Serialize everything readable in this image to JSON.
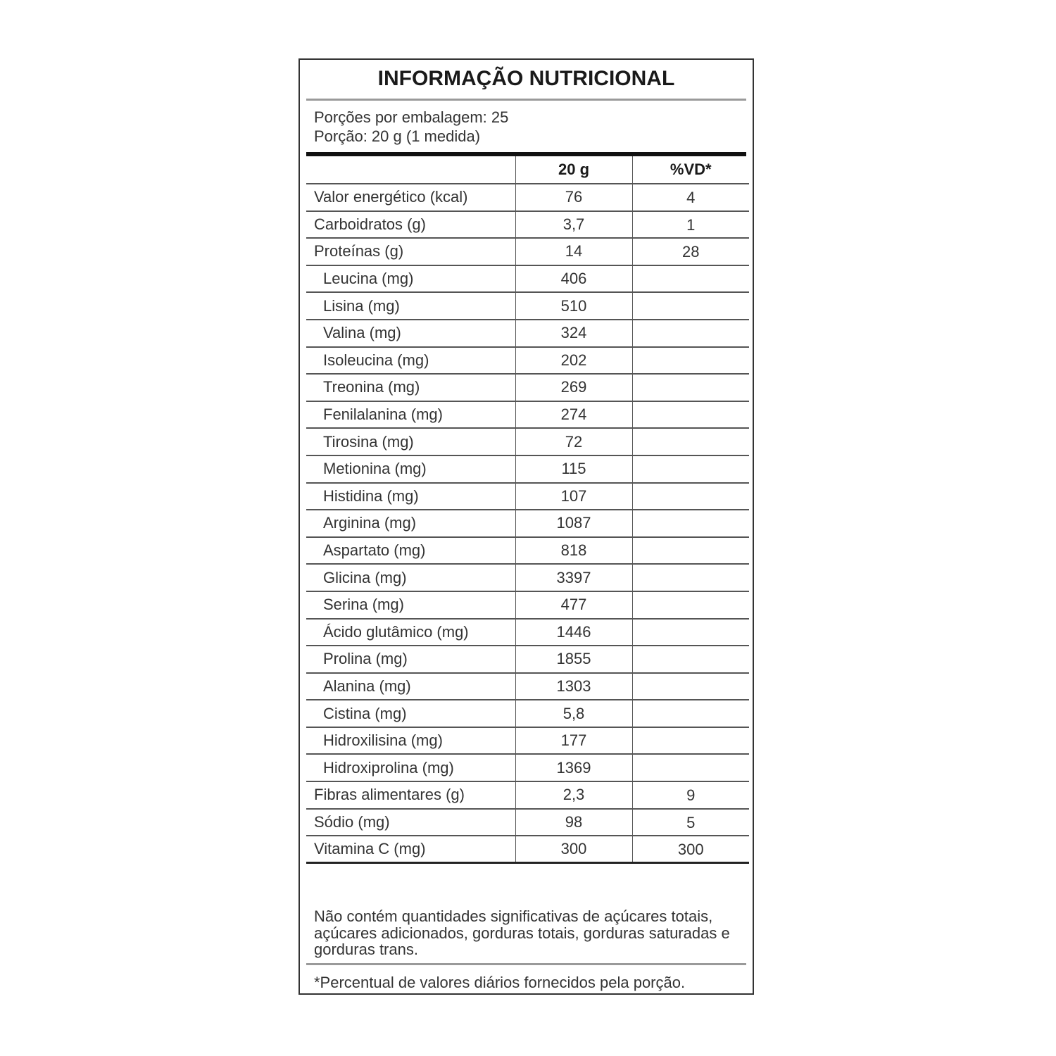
{
  "title": "INFORMAÇÃO NUTRICIONAL",
  "servings_per_package": "Porções por embalagem: 25",
  "serving_size": "Porção: 20 g (1 medida)",
  "columns": {
    "label": "",
    "amount": "20 g",
    "dv": "%VD*"
  },
  "rows": [
    {
      "label": "Valor energético (kcal)",
      "amount": "76",
      "dv": "4",
      "sub": false
    },
    {
      "label": "Carboidratos (g)",
      "amount": "3,7",
      "dv": "1",
      "sub": false
    },
    {
      "label": "Proteínas (g)",
      "amount": "14",
      "dv": "28",
      "sub": false
    },
    {
      "label": "Leucina (mg)",
      "amount": "406",
      "dv": "",
      "sub": true
    },
    {
      "label": "Lisina (mg)",
      "amount": "510",
      "dv": "",
      "sub": true
    },
    {
      "label": "Valina (mg)",
      "amount": "324",
      "dv": "",
      "sub": true
    },
    {
      "label": "Isoleucina (mg)",
      "amount": "202",
      "dv": "",
      "sub": true
    },
    {
      "label": "Treonina (mg)",
      "amount": "269",
      "dv": "",
      "sub": true
    },
    {
      "label": "Fenilalanina (mg)",
      "amount": "274",
      "dv": "",
      "sub": true
    },
    {
      "label": "Tirosina (mg)",
      "amount": "72",
      "dv": "",
      "sub": true
    },
    {
      "label": "Metionina (mg)",
      "amount": "115",
      "dv": "",
      "sub": true
    },
    {
      "label": "Histidina (mg)",
      "amount": "107",
      "dv": "",
      "sub": true
    },
    {
      "label": "Arginina (mg)",
      "amount": "1087",
      "dv": "",
      "sub": true
    },
    {
      "label": "Aspartato (mg)",
      "amount": "818",
      "dv": "",
      "sub": true
    },
    {
      "label": "Glicina (mg)",
      "amount": "3397",
      "dv": "",
      "sub": true
    },
    {
      "label": "Serina (mg)",
      "amount": "477",
      "dv": "",
      "sub": true
    },
    {
      "label": "Ácido glutâmico (mg)",
      "amount": "1446",
      "dv": "",
      "sub": true
    },
    {
      "label": "Prolina (mg)",
      "amount": "1855",
      "dv": "",
      "sub": true
    },
    {
      "label": "Alanina (mg)",
      "amount": "1303",
      "dv": "",
      "sub": true
    },
    {
      "label": "Cistina (mg)",
      "amount": "5,8",
      "dv": "",
      "sub": true
    },
    {
      "label": "Hidroxilisina (mg)",
      "amount": "177",
      "dv": "",
      "sub": true
    },
    {
      "label": "Hidroxiprolina (mg)",
      "amount": "1369",
      "dv": "",
      "sub": true
    },
    {
      "label": "Fibras alimentares (g)",
      "amount": "2,3",
      "dv": "9",
      "sub": false
    },
    {
      "label": "Sódio (mg)",
      "amount": "98",
      "dv": "5",
      "sub": false
    },
    {
      "label": "Vitamina C (mg)",
      "amount": "300",
      "dv": "300",
      "sub": false
    }
  ],
  "note": "Não contém quantidades significativas de açúcares totais, açúcares adicionados, gorduras totais, gorduras saturadas e gorduras trans.",
  "footnote": "*Percentual de valores diários fornecidos pela porção."
}
